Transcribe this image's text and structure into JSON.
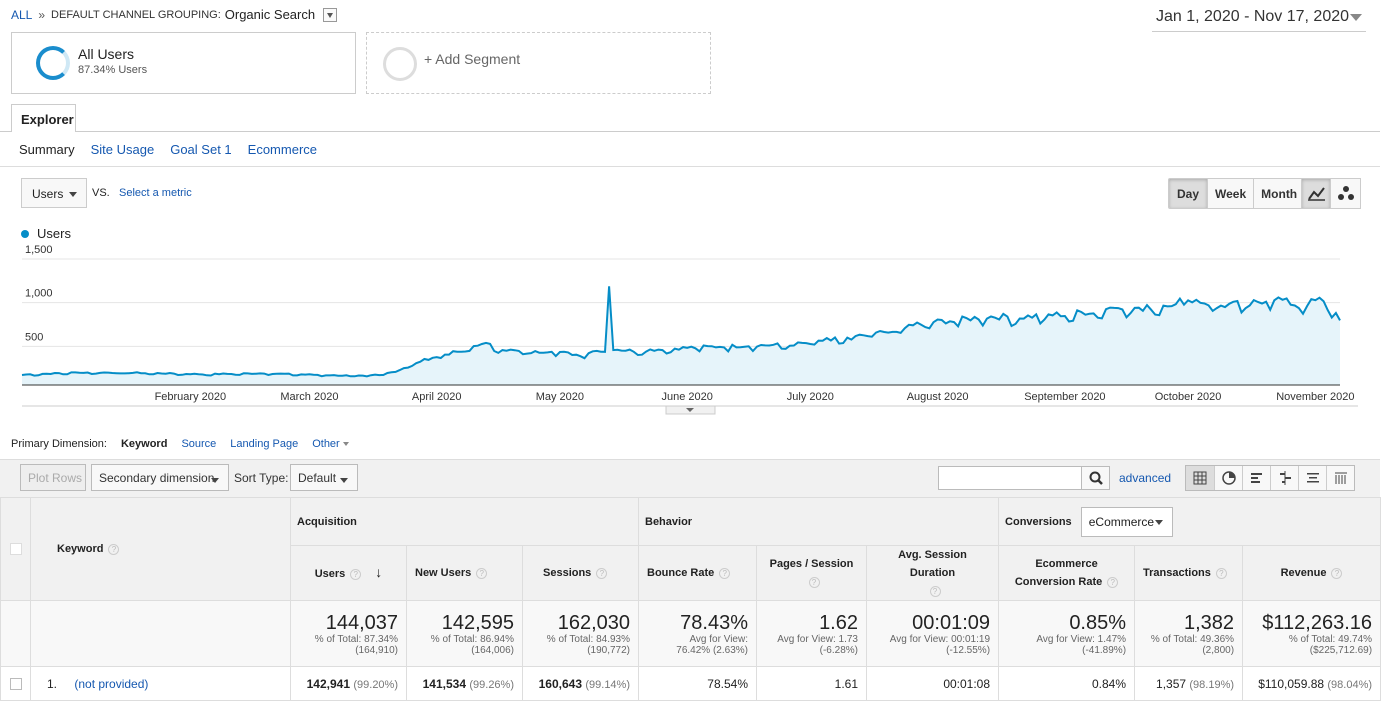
{
  "breadcrumb": {
    "all": "ALL",
    "sep": "»",
    "dimension": "DEFAULT CHANNEL GROUPING:",
    "value": "Organic Search"
  },
  "date_range": "Jan 1, 2020 - Nov 17, 2020",
  "segments": [
    {
      "name": "All Users",
      "detail": "87.34% Users"
    },
    {
      "name": "+ Add Segment"
    }
  ],
  "tabs": {
    "explorer": "Explorer"
  },
  "subtabs": [
    "Summary",
    "Site Usage",
    "Goal Set 1",
    "Ecommerce"
  ],
  "metric": {
    "selected": "Users",
    "vs": "VS.",
    "select_metric": "Select a metric"
  },
  "period_buttons": [
    "Day",
    "Week",
    "Month"
  ],
  "chart_data": {
    "type": "area",
    "series": [
      {
        "name": "Users",
        "color": "#058dc7"
      }
    ],
    "y_ticks": [
      {
        "label": "1,500",
        "value": 1500
      },
      {
        "label": "1,000",
        "value": 1000
      },
      {
        "label": "500",
        "value": 500
      }
    ],
    "ylim": [
      0,
      1500
    ],
    "x_labels": [
      "February 2020",
      "March 2020",
      "April 2020",
      "May 2020",
      "June 2020",
      "July 2020",
      "August 2020",
      "September 2020",
      "October 2020",
      "November 2020"
    ],
    "x_label_positions_days": [
      42,
      71,
      102,
      132,
      163,
      193,
      224,
      255,
      285,
      316
    ],
    "x_range_days": [
      1,
      322
    ],
    "key_points": [
      [
        1,
        115
      ],
      [
        15,
        140
      ],
      [
        30,
        135
      ],
      [
        45,
        120
      ],
      [
        60,
        130
      ],
      [
        75,
        110
      ],
      [
        85,
        100
      ],
      [
        92,
        150
      ],
      [
        97,
        250
      ],
      [
        102,
        320
      ],
      [
        108,
        380
      ],
      [
        113,
        470
      ],
      [
        118,
        400
      ],
      [
        124,
        360
      ],
      [
        130,
        380
      ],
      [
        137,
        330
      ],
      [
        141,
        390
      ],
      [
        143,
        380
      ],
      [
        144,
        1130
      ],
      [
        145,
        400
      ],
      [
        150,
        380
      ],
      [
        157,
        400
      ],
      [
        165,
        420
      ],
      [
        172,
        430
      ],
      [
        180,
        440
      ],
      [
        188,
        450
      ],
      [
        193,
        470
      ],
      [
        198,
        510
      ],
      [
        203,
        520
      ],
      [
        207,
        560
      ],
      [
        212,
        600
      ],
      [
        216,
        650
      ],
      [
        220,
        690
      ],
      [
        228,
        720
      ],
      [
        236,
        760
      ],
      [
        245,
        760
      ],
      [
        255,
        790
      ],
      [
        262,
        820
      ],
      [
        268,
        880
      ],
      [
        274,
        850
      ],
      [
        280,
        900
      ],
      [
        285,
        970
      ],
      [
        292,
        880
      ],
      [
        300,
        910
      ],
      [
        306,
        970
      ],
      [
        312,
        880
      ],
      [
        318,
        960
      ],
      [
        322,
        740
      ]
    ]
  },
  "primary_dimension": {
    "label": "Primary Dimension:",
    "options": [
      "Keyword",
      "Source",
      "Landing Page",
      "Other"
    ]
  },
  "toolbar": {
    "plot_rows": "Plot Rows",
    "secondary": "Secondary dimension",
    "sort_label": "Sort Type:",
    "sort_value": "Default",
    "advanced": "advanced"
  },
  "table": {
    "keyword_header": "Keyword",
    "groups": {
      "acquisition": "Acquisition",
      "behavior": "Behavior",
      "conversions": "Conversions",
      "conversions_select": "eCommerce"
    },
    "columns": [
      "Users",
      "New Users",
      "Sessions",
      "Bounce Rate",
      "Pages / Session",
      "Avg. Session Duration",
      "Ecommerce Conversion Rate",
      "Transactions",
      "Revenue"
    ],
    "totals": [
      {
        "value": "144,037",
        "l1": "% of Total: 87.34%",
        "l2": "(164,910)"
      },
      {
        "value": "142,595",
        "l1": "% of Total: 86.94%",
        "l2": "(164,006)"
      },
      {
        "value": "162,030",
        "l1": "% of Total: 84.93%",
        "l2": "(190,772)"
      },
      {
        "value": "78.43%",
        "l1": "Avg for View:",
        "l2": "76.42% (2.63%)"
      },
      {
        "value": "1.62",
        "l1": "Avg for View: 1.73",
        "l2": "(-6.28%)"
      },
      {
        "value": "00:01:09",
        "l1": "Avg for View: 00:01:19",
        "l2": "(-12.55%)"
      },
      {
        "value": "0.85%",
        "l1": "Avg for View: 1.47%",
        "l2": "(-41.89%)"
      },
      {
        "value": "1,382",
        "l1": "% of Total: 49.36%",
        "l2": "(2,800)"
      },
      {
        "value": "$112,263.16",
        "l1": "% of Total: 49.74%",
        "l2": "($225,712.69)"
      }
    ],
    "rows": [
      {
        "index": "1.",
        "keyword": "(not provided)",
        "cells": [
          {
            "v": "142,941",
            "p": "(99.20%)"
          },
          {
            "v": "141,534",
            "p": "(99.26%)"
          },
          {
            "v": "160,643",
            "p": "(99.14%)"
          },
          {
            "v": "78.54%"
          },
          {
            "v": "1.61"
          },
          {
            "v": "00:01:08"
          },
          {
            "v": "0.84%"
          },
          {
            "v": "1,357",
            "p": "(98.19%)"
          },
          {
            "v": "$110,059.88",
            "p": "(98.04%)"
          }
        ]
      }
    ]
  }
}
